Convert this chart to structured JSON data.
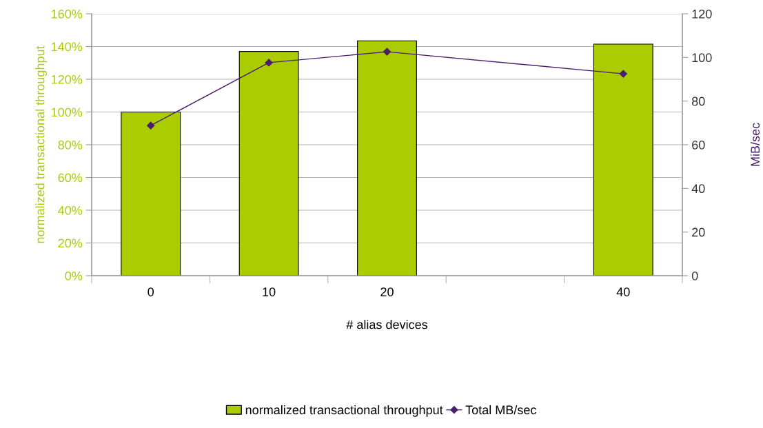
{
  "chart_data": {
    "type": "bar",
    "xlabel": "# alias devices",
    "ylabel": "normalized transactional throughput",
    "y2label": "MiB/sec",
    "categories": [
      "0",
      "10",
      "20",
      null,
      "40"
    ],
    "series": [
      {
        "name": "normalized transactional throughput",
        "color": "#aacc00",
        "values": [
          100,
          137,
          143.5,
          null,
          141.5
        ]
      },
      {
        "name": "Total MB/sec",
        "type": "line",
        "axis": "y2",
        "color": "#4b1e6e",
        "marker": "diamond",
        "values": [
          68.8,
          97.6,
          102.6,
          null,
          92.5
        ]
      }
    ],
    "ylim": [
      0,
      160
    ],
    "yticks": [
      {
        "value": 0,
        "label": "0%"
      },
      {
        "value": 20,
        "label": "20%"
      },
      {
        "value": 40,
        "label": "40%"
      },
      {
        "value": 60,
        "label": "60%"
      },
      {
        "value": 80,
        "label": "80%"
      },
      {
        "value": 100,
        "label": "100%"
      },
      {
        "value": 120,
        "label": "120%"
      },
      {
        "value": 140,
        "label": "140%"
      },
      {
        "value": 160,
        "label": "160%"
      }
    ],
    "y2lim": [
      0,
      120
    ],
    "y2ticks": [
      0,
      20,
      40,
      60,
      80,
      100,
      120
    ],
    "grid": "y",
    "legend": "bottom"
  }
}
